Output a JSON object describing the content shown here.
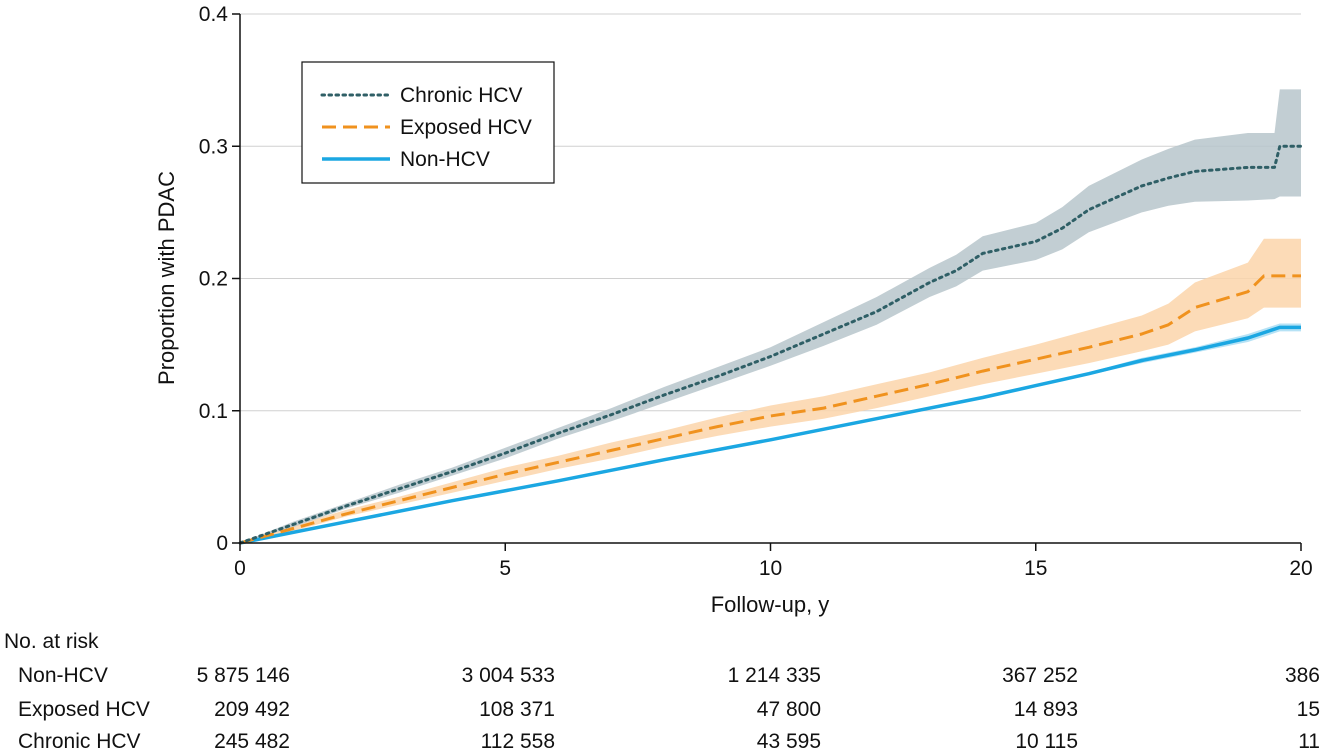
{
  "chart_data": {
    "type": "line",
    "xlabel": "Follow-up, y",
    "ylabel": "Proportion with PDAC",
    "xlim": [
      0,
      20
    ],
    "ylim": [
      0,
      0.4
    ],
    "x_ticks": [
      0,
      5,
      10,
      15,
      20
    ],
    "x_tick_labels": [
      "0",
      "5",
      "10",
      "15",
      "20"
    ],
    "y_ticks": [
      0,
      0.1,
      0.2,
      0.3,
      0.4
    ],
    "y_tick_labels": [
      "0",
      "0.1",
      "0.2",
      "0.3",
      "0.4"
    ],
    "grid": "horizontal",
    "legend_position": "top-left",
    "series": [
      {
        "name": "Chronic HCV",
        "color": "#2f5f66",
        "band_color": "#b7c6cb",
        "line_style": "dotted",
        "x": [
          0,
          1,
          2,
          3,
          4,
          5,
          6,
          7,
          8,
          9,
          10,
          11,
          12,
          13,
          13.5,
          14,
          15,
          15.5,
          16,
          17,
          17.5,
          18,
          19,
          19.5,
          19.6,
          20
        ],
        "y": [
          0,
          0.014,
          0.028,
          0.041,
          0.054,
          0.068,
          0.083,
          0.097,
          0.112,
          0.126,
          0.141,
          0.158,
          0.175,
          0.197,
          0.206,
          0.219,
          0.228,
          0.238,
          0.252,
          0.27,
          0.276,
          0.281,
          0.284,
          0.284,
          0.3,
          0.3
        ],
        "ci_lower": [
          0,
          0.012,
          0.026,
          0.038,
          0.051,
          0.064,
          0.079,
          0.092,
          0.106,
          0.12,
          0.134,
          0.149,
          0.165,
          0.186,
          0.194,
          0.206,
          0.214,
          0.222,
          0.235,
          0.25,
          0.255,
          0.258,
          0.259,
          0.26,
          0.262,
          0.262
        ],
        "ci_upper": [
          0,
          0.016,
          0.03,
          0.044,
          0.057,
          0.072,
          0.087,
          0.102,
          0.118,
          0.133,
          0.148,
          0.167,
          0.186,
          0.208,
          0.218,
          0.232,
          0.242,
          0.254,
          0.27,
          0.29,
          0.298,
          0.305,
          0.31,
          0.31,
          0.343,
          0.343
        ]
      },
      {
        "name": "Exposed HCV",
        "color": "#f0921e",
        "band_color": "#fbd5aa",
        "line_style": "dashed",
        "x": [
          0,
          1,
          2,
          3,
          4,
          5,
          6,
          7,
          8,
          9,
          10,
          11,
          12,
          13,
          14,
          15,
          16,
          17,
          17.5,
          18,
          19,
          19.3,
          20
        ],
        "y": [
          0,
          0.011,
          0.022,
          0.032,
          0.042,
          0.052,
          0.061,
          0.07,
          0.079,
          0.088,
          0.096,
          0.102,
          0.111,
          0.12,
          0.13,
          0.139,
          0.148,
          0.158,
          0.165,
          0.178,
          0.19,
          0.202,
          0.202
        ],
        "ci_lower": [
          0,
          0.009,
          0.02,
          0.029,
          0.038,
          0.047,
          0.056,
          0.064,
          0.073,
          0.081,
          0.088,
          0.094,
          0.102,
          0.111,
          0.12,
          0.128,
          0.136,
          0.145,
          0.15,
          0.16,
          0.17,
          0.178,
          0.178
        ],
        "ci_upper": [
          0,
          0.013,
          0.025,
          0.035,
          0.046,
          0.057,
          0.066,
          0.076,
          0.085,
          0.095,
          0.104,
          0.111,
          0.12,
          0.129,
          0.14,
          0.15,
          0.161,
          0.172,
          0.181,
          0.197,
          0.212,
          0.23,
          0.23
        ]
      },
      {
        "name": "Non-HCV",
        "color": "#1ba7e2",
        "band_color": "#a9ddf3",
        "line_style": "solid",
        "x": [
          0,
          2,
          4,
          6,
          8,
          10,
          12,
          14,
          15,
          16,
          17,
          18,
          19,
          19.6,
          20
        ],
        "y": [
          0,
          0.016,
          0.032,
          0.047,
          0.063,
          0.078,
          0.094,
          0.11,
          0.119,
          0.128,
          0.138,
          0.146,
          0.155,
          0.163,
          0.163
        ],
        "ci_lower": [
          0,
          0.015,
          0.031,
          0.046,
          0.062,
          0.077,
          0.093,
          0.109,
          0.118,
          0.127,
          0.136,
          0.144,
          0.152,
          0.16,
          0.16
        ],
        "ci_upper": [
          0,
          0.017,
          0.033,
          0.048,
          0.064,
          0.079,
          0.095,
          0.111,
          0.12,
          0.129,
          0.14,
          0.148,
          0.158,
          0.166,
          0.166
        ]
      }
    ],
    "at_risk": {
      "title": "No. at risk",
      "times": [
        0,
        5,
        10,
        15,
        20
      ],
      "rows": [
        {
          "label": "Non-HCV",
          "values": [
            "5 875 146",
            "3 004 533",
            "1 214 335",
            "367 252",
            "386"
          ]
        },
        {
          "label": "Exposed HCV",
          "values": [
            "209 492",
            "108 371",
            "47 800",
            "14 893",
            "15"
          ]
        },
        {
          "label": "Chronic HCV",
          "values": [
            "245 482",
            "112 558",
            "43 595",
            "10 115",
            "11"
          ]
        }
      ]
    }
  }
}
